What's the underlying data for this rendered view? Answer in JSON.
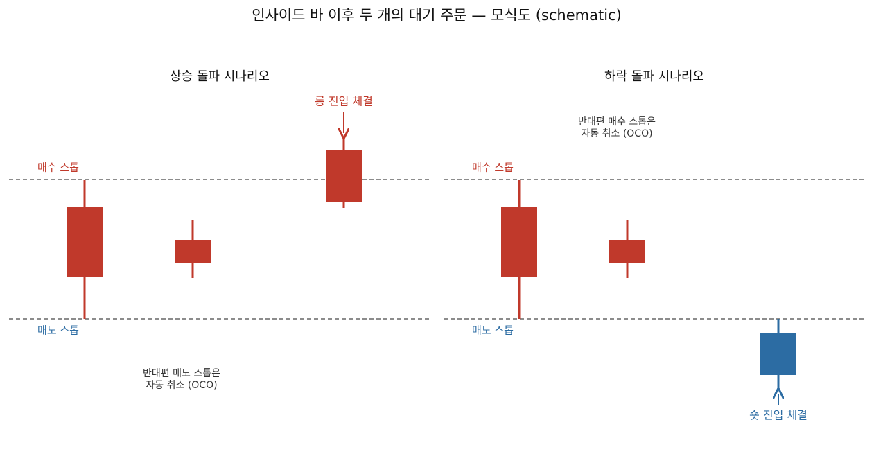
{
  "title": "인사이드 바 이후 두 개의 대기 주문 — 모식도 (schematic)",
  "panels": [
    {
      "title": "상승 돌파 시나리오",
      "buy_stop_label": "매수 스톱",
      "sell_stop_label": "매도 스톱",
      "entry_label": "롱 진입 체결",
      "note": [
        "반대편 매도 스톱은",
        "자동 취소 (OCO)"
      ]
    },
    {
      "title": "하락 돌파 시나리오",
      "buy_stop_label": "매수 스톱",
      "sell_stop_label": "매도 스톱",
      "entry_label": "숏 진입 체결",
      "note": [
        "반대편 매수 스톱은",
        "자동 취소 (OCO)"
      ]
    }
  ]
}
